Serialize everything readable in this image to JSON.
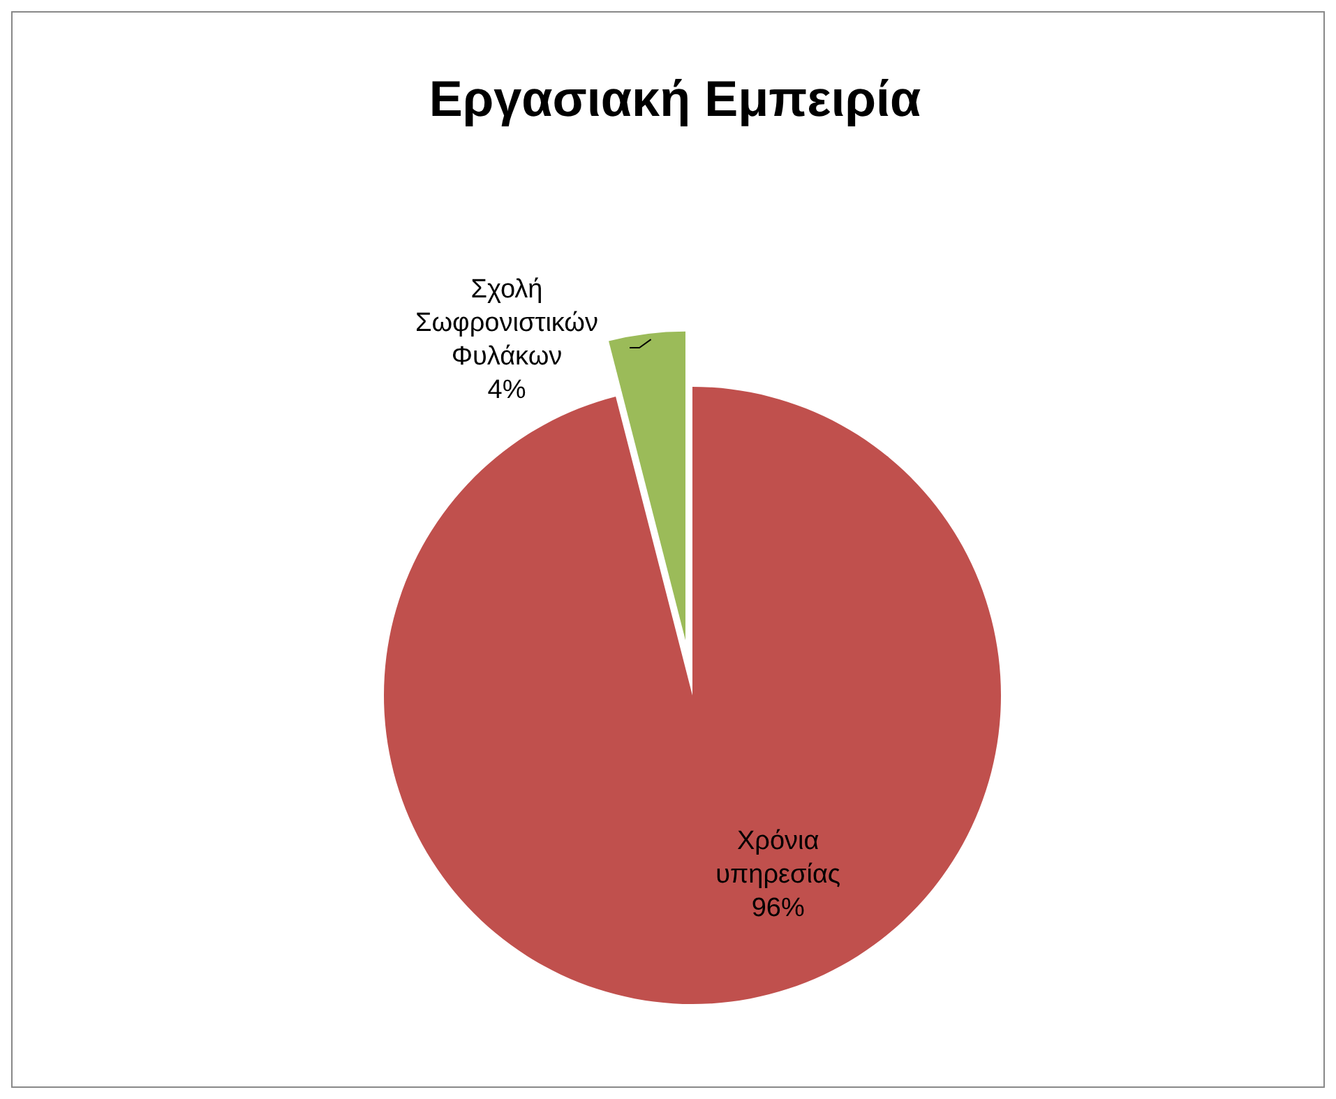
{
  "chart_data": {
    "type": "pie",
    "title": "Εργασιακή Εμπειρία",
    "categories": [
      "Χρόνια υπηρεσίας",
      "Σχολή Σωφρονιστικών Φυλάκων"
    ],
    "values": [
      96,
      4
    ],
    "colors": [
      "#c0504d",
      "#9bbb59"
    ],
    "value_labels": [
      "96%",
      "4%"
    ],
    "legend": false
  }
}
